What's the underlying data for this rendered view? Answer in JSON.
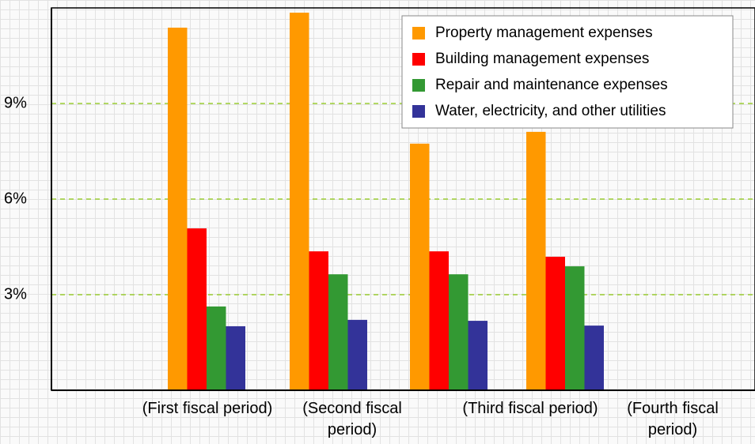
{
  "chart_data": {
    "type": "bar",
    "categories": [
      "(First fiscal period)",
      "(Second fiscal period)",
      "(Third fiscal period)",
      "(Fourth fiscal period)"
    ],
    "series": [
      {
        "name": "Property management expenses",
        "color": "#ff9900",
        "values": [
          11.38,
          11.85,
          7.74,
          8.11
        ]
      },
      {
        "name": "Building management expenses",
        "color": "#ff0000",
        "values": [
          5.08,
          4.36,
          4.36,
          4.19
        ]
      },
      {
        "name": "Repair and maintenance expenses",
        "color": "#339933",
        "values": [
          2.63,
          3.64,
          3.64,
          3.89
        ]
      },
      {
        "name": "Water, electricity, and other utilities",
        "color": "#333399",
        "values": [
          2.01,
          2.21,
          2.18,
          2.03
        ]
      }
    ],
    "ylim": [
      0,
      12
    ],
    "yticks": [
      {
        "value": 3,
        "label": "3%"
      },
      {
        "value": 6,
        "label": "6%"
      },
      {
        "value": 9,
        "label": "9%"
      }
    ],
    "grid": true
  }
}
